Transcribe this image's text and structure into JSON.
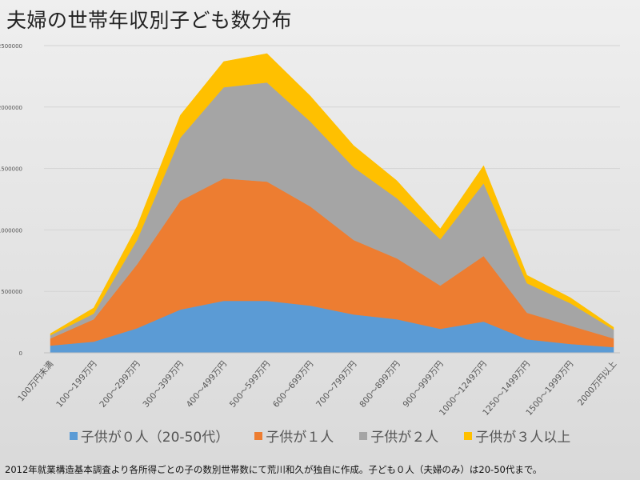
{
  "chart_data": {
    "type": "area",
    "stacked": true,
    "title": "夫婦の世帯年収別子ども数分布",
    "xlabel": "",
    "ylabel": "",
    "ylim": [
      0,
      2500000
    ],
    "yticks": [
      0,
      500000,
      1000000,
      1500000,
      2000000,
      2500000
    ],
    "ytick_labels": [
      "0",
      "500000",
      "1000000",
      "1500000",
      "2000000",
      "2500000"
    ],
    "grid": true,
    "legend_position": "bottom",
    "categories": [
      "100万円未満",
      "100～199万円",
      "200～299万円",
      "300～399万円",
      "400～499万円",
      "500～599万円",
      "600～699万円",
      "700～799万円",
      "800～899万円",
      "900～999万円",
      "1000～1249万円",
      "1250～1499万円",
      "1500～1999万円",
      "2000万円以上"
    ],
    "series": [
      {
        "name": "子供が０人（20-50代）",
        "color": "#5b9bd5",
        "values": [
          59000,
          91000,
          200000,
          352000,
          423000,
          423000,
          384000,
          312000,
          273000,
          195000,
          254000,
          110000,
          72000,
          46000
        ]
      },
      {
        "name": "子供が１人",
        "color": "#ed7d31",
        "values": [
          58000,
          182000,
          520000,
          885000,
          996000,
          970000,
          807000,
          606000,
          495000,
          352000,
          534000,
          216000,
          149000,
          71000
        ]
      },
      {
        "name": "子供が２人",
        "color": "#a5a5a5",
        "values": [
          26000,
          46000,
          198000,
          514000,
          742000,
          807000,
          691000,
          592000,
          489000,
          377000,
          592000,
          240000,
          183000,
          72000
        ]
      },
      {
        "name": "子供が３人以上",
        "color": "#ffc000",
        "values": [
          13000,
          46000,
          111000,
          183000,
          209000,
          235000,
          208000,
          176000,
          143000,
          85000,
          143000,
          65000,
          45000,
          19000
        ]
      }
    ]
  },
  "footnote": "2012年就業構造基本調査より各所得ごとの子の数別世帯数にて荒川和久が独自に作成。子ども０人（夫婦のみ）は20-50代まで。"
}
